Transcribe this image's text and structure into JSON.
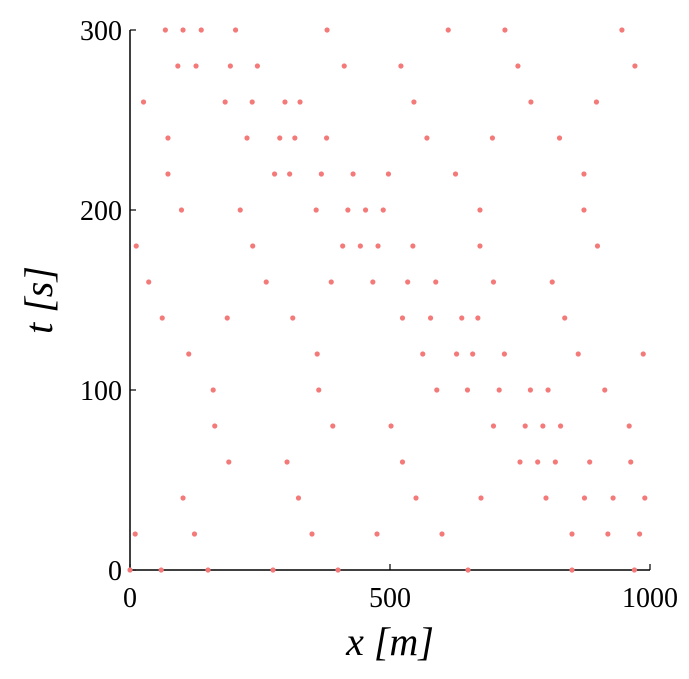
{
  "chart_data": {
    "type": "scatter",
    "x_label": "x [m]",
    "y_label": "t [s]",
    "color": "#f47a7a",
    "xlim": [
      0,
      1000
    ],
    "ylim": [
      0,
      300
    ],
    "xticks": [
      0,
      500,
      1000
    ],
    "yticks": [
      0,
      100,
      200,
      300
    ],
    "y": [
      0,
      20,
      40,
      60,
      80,
      100,
      120,
      140,
      160,
      180,
      200,
      220,
      240,
      260,
      280,
      300
    ],
    "series": [
      {
        "x": [
          0,
          10,
          102,
          302,
          502,
          649,
          659,
          669,
          812,
          12,
          212,
          307,
          317,
          327,
          521,
          721
        ]
      },
      {
        "x": [
          150,
          350,
          550,
          750,
          760,
          770,
          862,
          62,
          262,
          409,
          419,
          429,
          571,
          771,
          971,
          68
        ]
      },
      {
        "x": [
          400,
          600,
          800,
          818,
          828,
          913,
          113,
          313,
          467,
          477,
          487,
          626,
          826,
          26,
          127,
          137
        ]
      },
      {
        "x": [
          650,
          850,
          874,
          884,
          960,
          160,
          360,
          524,
          534,
          544,
          673,
          873,
          73,
          183,
          193,
          203
        ]
      },
      {
        "x": [
          850,
          919,
          929,
          963,
          163,
          363,
          563,
          578,
          588,
          673,
          873,
          73,
          225,
          235,
          245,
          379
        ]
      },
      {
        "x": [
          970,
          980,
          990,
          190,
          390,
          590,
          628,
          638,
          699,
          899,
          99,
          278,
          288,
          298,
          412,
          612
        ]
      },
      {
        "x": [
          60,
          124,
          324,
          524,
          699,
          710,
          720,
          836,
          36,
          236,
          358,
          368,
          378,
          546,
          746,
          946
        ]
      },
      {
        "x": [
          275,
          475,
          675,
          784,
          794,
          804,
          987,
          187,
          387,
          443,
          453,
          497,
          697,
          897,
          92,
          102
        ]
      }
    ]
  }
}
